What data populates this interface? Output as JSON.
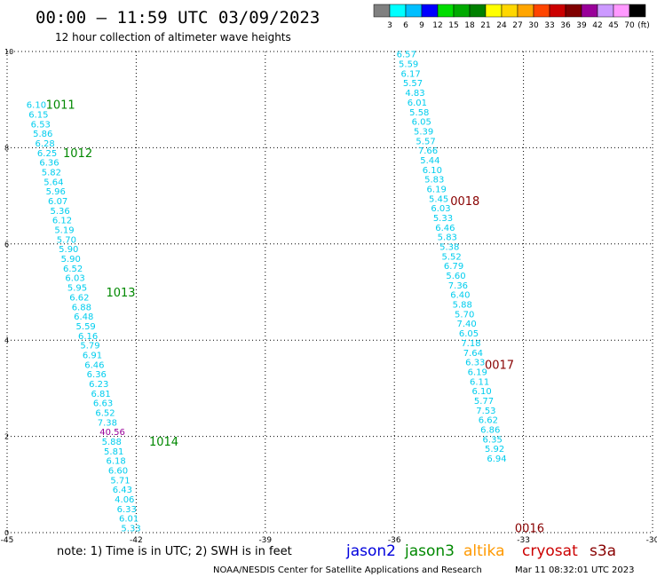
{
  "chart_data": {
    "type": "scatter",
    "title": "00:00 – 11:59 UTC 03/09/2023",
    "subtitle": "12 hour collection of altimeter wave heights",
    "xlim": [
      -45,
      -30
    ],
    "ylim": [
      0,
      10
    ],
    "x_ticks": [
      "-45",
      "-42",
      "-39",
      "-36",
      "-33",
      "-30"
    ],
    "y_ticks": [
      "0",
      "2",
      "4",
      "6",
      "8",
      "10"
    ],
    "grid": true,
    "color_scale": {
      "unit": "(ft)",
      "labels": [
        "3",
        "6",
        "9",
        "12",
        "15",
        "18",
        "21",
        "24",
        "27",
        "30",
        "33",
        "36",
        "39",
        "42",
        "45",
        "70"
      ],
      "colors": [
        "#808080",
        "#00ffff",
        "#00bfff",
        "#0000ff",
        "#00dd00",
        "#00aa00",
        "#008000",
        "#ffff00",
        "#ffd700",
        "#ffa500",
        "#ff4500",
        "#cc0000",
        "#800000",
        "#990099",
        "#cc99ff",
        "#ff99ff",
        "#000000"
      ]
    },
    "series": [
      {
        "name": "jason3",
        "color": "#00cdee",
        "labels": [
          {
            "text": "1011",
            "x": -44.1,
            "y": 8.9
          },
          {
            "text": "1012",
            "x": -43.7,
            "y": 7.9
          },
          {
            "text": "1013",
            "x": -42.7,
            "y": 5.0
          },
          {
            "text": "1014",
            "x": -41.7,
            "y": 1.9
          }
        ],
        "points": [
          {
            "x": -44.55,
            "y": 8.9,
            "v": "6.10"
          },
          {
            "x": -44.5,
            "y": 8.7,
            "v": "6.15"
          },
          {
            "x": -44.45,
            "y": 8.5,
            "v": "6.53"
          },
          {
            "x": -44.4,
            "y": 8.3,
            "v": "5.86"
          },
          {
            "x": -44.35,
            "y": 8.1,
            "v": "6.28"
          },
          {
            "x": -44.3,
            "y": 7.9,
            "v": "6.25"
          },
          {
            "x": -44.25,
            "y": 7.7,
            "v": "6.36"
          },
          {
            "x": -44.2,
            "y": 7.5,
            "v": "5.82"
          },
          {
            "x": -44.15,
            "y": 7.3,
            "v": "5.64"
          },
          {
            "x": -44.1,
            "y": 7.1,
            "v": "5.96"
          },
          {
            "x": -44.05,
            "y": 6.9,
            "v": "6.07"
          },
          {
            "x": -44.0,
            "y": 6.7,
            "v": "5.36"
          },
          {
            "x": -43.95,
            "y": 6.5,
            "v": "6.12"
          },
          {
            "x": -43.9,
            "y": 6.3,
            "v": "5.19"
          },
          {
            "x": -43.85,
            "y": 6.1,
            "v": "5.70"
          },
          {
            "x": -43.8,
            "y": 5.9,
            "v": "5.90"
          },
          {
            "x": -43.75,
            "y": 5.7,
            "v": "5.90"
          },
          {
            "x": -43.7,
            "y": 5.5,
            "v": "6.52"
          },
          {
            "x": -43.65,
            "y": 5.3,
            "v": "6.03"
          },
          {
            "x": -43.6,
            "y": 5.1,
            "v": "5.95"
          },
          {
            "x": -43.55,
            "y": 4.9,
            "v": "6.62"
          },
          {
            "x": -43.5,
            "y": 4.7,
            "v": "6.88"
          },
          {
            "x": -43.45,
            "y": 4.5,
            "v": "6.48"
          },
          {
            "x": -43.4,
            "y": 4.3,
            "v": "5.59"
          },
          {
            "x": -43.35,
            "y": 4.1,
            "v": "6.16"
          },
          {
            "x": -43.3,
            "y": 3.9,
            "v": "5.79"
          },
          {
            "x": -43.25,
            "y": 3.7,
            "v": "6.91"
          },
          {
            "x": -43.2,
            "y": 3.5,
            "v": "6.46"
          },
          {
            "x": -43.15,
            "y": 3.3,
            "v": "6.36"
          },
          {
            "x": -43.1,
            "y": 3.1,
            "v": "6.23"
          },
          {
            "x": -43.05,
            "y": 2.9,
            "v": "6.81"
          },
          {
            "x": -43.0,
            "y": 2.7,
            "v": "6.63"
          },
          {
            "x": -42.95,
            "y": 2.5,
            "v": "6.52"
          },
          {
            "x": -42.9,
            "y": 2.3,
            "v": "7.38"
          },
          {
            "x": -42.85,
            "y": 2.1,
            "v": "40.56",
            "color": "#990099"
          },
          {
            "x": -42.8,
            "y": 1.9,
            "v": "5.88"
          },
          {
            "x": -42.75,
            "y": 1.7,
            "v": "5.81"
          },
          {
            "x": -42.7,
            "y": 1.5,
            "v": "6.18"
          },
          {
            "x": -42.65,
            "y": 1.3,
            "v": "6.60"
          },
          {
            "x": -42.6,
            "y": 1.1,
            "v": "5.71"
          },
          {
            "x": -42.55,
            "y": 0.9,
            "v": "6.43"
          },
          {
            "x": -42.5,
            "y": 0.7,
            "v": "4.06"
          },
          {
            "x": -42.45,
            "y": 0.5,
            "v": "6.33"
          },
          {
            "x": -42.4,
            "y": 0.3,
            "v": "6.01"
          },
          {
            "x": -42.35,
            "y": 0.1,
            "v": "5.33"
          }
        ]
      },
      {
        "name": "s3a",
        "color": "#00cdee",
        "labels": [
          {
            "text": "0018",
            "x": -34.7,
            "y": 6.9
          },
          {
            "text": "0017",
            "x": -33.9,
            "y": 3.5
          },
          {
            "text": "0016",
            "x": -33.2,
            "y": 0.1
          }
        ],
        "points": [
          {
            "x": -35.95,
            "y": 9.95,
            "v": "6.57"
          },
          {
            "x": -35.9,
            "y": 9.75,
            "v": "5.59"
          },
          {
            "x": -35.85,
            "y": 9.55,
            "v": "6.17"
          },
          {
            "x": -35.8,
            "y": 9.35,
            "v": "5.57"
          },
          {
            "x": -35.75,
            "y": 9.15,
            "v": "4.83"
          },
          {
            "x": -35.7,
            "y": 8.95,
            "v": "6.01"
          },
          {
            "x": -35.65,
            "y": 8.75,
            "v": "5.58"
          },
          {
            "x": -35.6,
            "y": 8.55,
            "v": "6.05"
          },
          {
            "x": -35.55,
            "y": 8.35,
            "v": "5.39"
          },
          {
            "x": -35.5,
            "y": 8.15,
            "v": "5.57"
          },
          {
            "x": -35.45,
            "y": 7.95,
            "v": "7.66"
          },
          {
            "x": -35.4,
            "y": 7.75,
            "v": "5.44"
          },
          {
            "x": -35.35,
            "y": 7.55,
            "v": "6.10"
          },
          {
            "x": -35.3,
            "y": 7.35,
            "v": "5.83"
          },
          {
            "x": -35.25,
            "y": 7.15,
            "v": "6.19"
          },
          {
            "x": -35.2,
            "y": 6.95,
            "v": "5.45"
          },
          {
            "x": -35.15,
            "y": 6.75,
            "v": "6.03"
          },
          {
            "x": -35.1,
            "y": 6.55,
            "v": "5.33"
          },
          {
            "x": -35.05,
            "y": 6.35,
            "v": "6.46"
          },
          {
            "x": -35.0,
            "y": 6.15,
            "v": "5.83"
          },
          {
            "x": -34.95,
            "y": 5.95,
            "v": "5.38"
          },
          {
            "x": -34.9,
            "y": 5.75,
            "v": "5.52"
          },
          {
            "x": -34.85,
            "y": 5.55,
            "v": "6.79"
          },
          {
            "x": -34.8,
            "y": 5.35,
            "v": "5.60"
          },
          {
            "x": -34.75,
            "y": 5.15,
            "v": "7.36"
          },
          {
            "x": -34.7,
            "y": 4.95,
            "v": "6.40"
          },
          {
            "x": -34.65,
            "y": 4.75,
            "v": "5.88"
          },
          {
            "x": -34.6,
            "y": 4.55,
            "v": "5.70"
          },
          {
            "x": -34.55,
            "y": 4.35,
            "v": "7.40"
          },
          {
            "x": -34.5,
            "y": 4.15,
            "v": "6.05"
          },
          {
            "x": -34.45,
            "y": 3.95,
            "v": "7.18"
          },
          {
            "x": -34.4,
            "y": 3.75,
            "v": "7.64"
          },
          {
            "x": -34.35,
            "y": 3.55,
            "v": "6.33"
          },
          {
            "x": -34.3,
            "y": 3.35,
            "v": "6.19"
          },
          {
            "x": -34.25,
            "y": 3.15,
            "v": "6.11"
          },
          {
            "x": -34.2,
            "y": 2.95,
            "v": "6.10"
          },
          {
            "x": -34.15,
            "y": 2.75,
            "v": "5.77"
          },
          {
            "x": -34.1,
            "y": 2.55,
            "v": "7.53"
          },
          {
            "x": -34.05,
            "y": 2.35,
            "v": "6.62"
          },
          {
            "x": -34.0,
            "y": 2.15,
            "v": "6.86"
          },
          {
            "x": -33.95,
            "y": 1.95,
            "v": "6.35"
          },
          {
            "x": -33.9,
            "y": 1.75,
            "v": "5.92"
          },
          {
            "x": -33.85,
            "y": 1.55,
            "v": "6.94"
          }
        ]
      }
    ]
  },
  "legend": {
    "note": "note:  1) Time is in UTC;  2) SWH is in feet",
    "satellites": [
      {
        "name": "jason2",
        "color": "#0000dd"
      },
      {
        "name": "jason3",
        "color": "#008800"
      },
      {
        "name": "altika",
        "color": "#ff9900"
      },
      {
        "name": "cryosat",
        "color": "#cc0000"
      },
      {
        "name": "s3a",
        "color": "#880000"
      }
    ]
  },
  "footer": {
    "credit": "NOAA/NESDIS Center for Satellite Applications and Research",
    "timestamp": "Mar 11 08:32:01 UTC 2023"
  }
}
